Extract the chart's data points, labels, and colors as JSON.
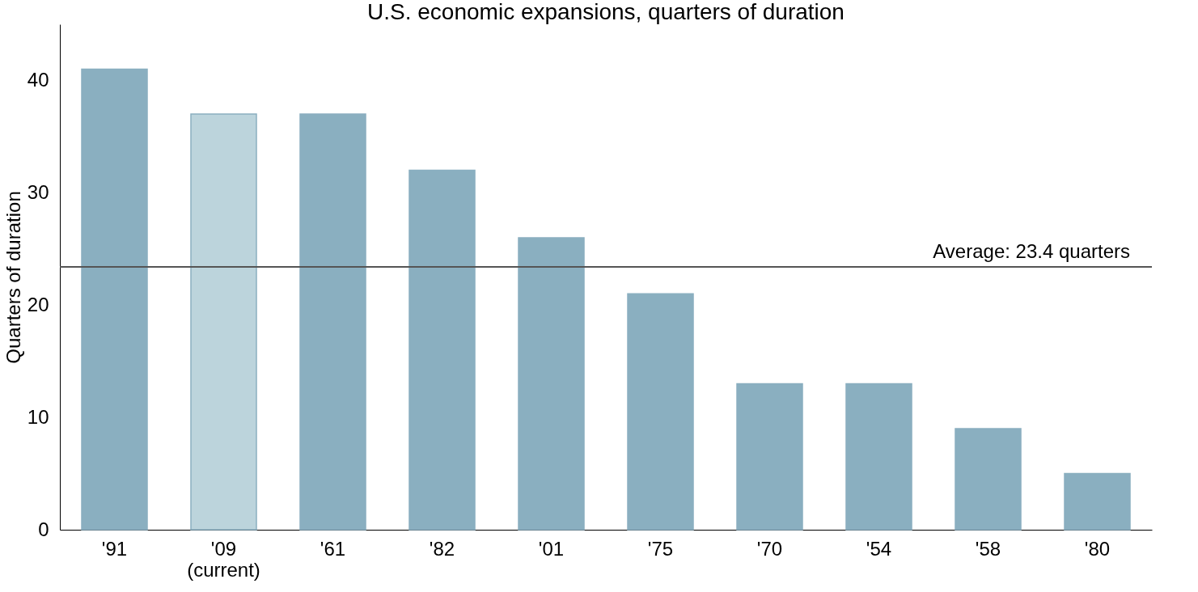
{
  "chart_data": {
    "type": "bar",
    "title": "U.S. economic expansions, quarters of duration",
    "ylabel": "Quarters of duration",
    "categories": [
      "'91",
      "'09\n(current)",
      "'61",
      "'82",
      "'01",
      "'75",
      "'70",
      "'54",
      "'58",
      "'80"
    ],
    "values": [
      41,
      37,
      37,
      32,
      26,
      21,
      13,
      13,
      9,
      5
    ],
    "colors": [
      "#8aafc0",
      "#bcd4dc",
      "#8aafc0",
      "#8aafc0",
      "#8aafc0",
      "#8aafc0",
      "#8aafc0",
      "#8aafc0",
      "#8aafc0",
      "#8aafc0"
    ],
    "ylim": [
      0,
      45
    ],
    "yticks": [
      0,
      10,
      20,
      30,
      40
    ],
    "grid": false,
    "ref_lines": [
      {
        "axis": "y",
        "value": 23.4,
        "label": "Average: 23.4 quarters",
        "color": "#555555",
        "line_style": "solid"
      }
    ]
  }
}
